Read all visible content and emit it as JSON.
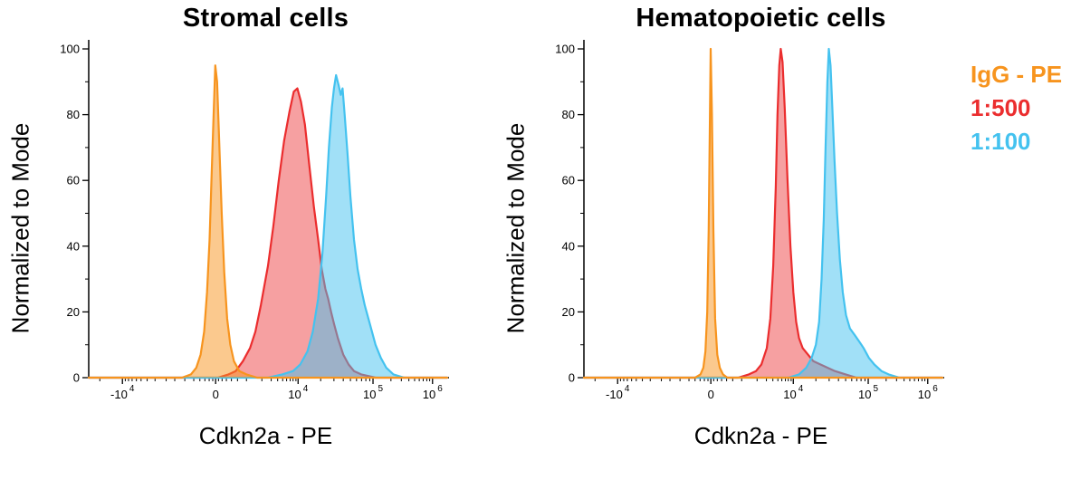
{
  "legend": {
    "items": [
      {
        "label": "IgG - PE",
        "color": "#F7941E"
      },
      {
        "label": "1:500",
        "color": "#EB2D2E"
      },
      {
        "label": "1:100",
        "color": "#44C2EF"
      }
    ]
  },
  "chart_data": [
    {
      "type": "area",
      "title": "Stromal cells",
      "xlabel": "Cdkn2a - PE",
      "ylabel": "Normalized to Mode",
      "x_scale": "biexponential",
      "ylim": [
        0,
        100
      ],
      "grid": false,
      "y_ticks": [
        0,
        20,
        40,
        60,
        80,
        100
      ],
      "y_minor_ticks": [
        10,
        30,
        50,
        70,
        90
      ],
      "x_ticks": [
        {
          "frac": 0.094,
          "base": "-10",
          "exp": "4"
        },
        {
          "frac": 0.354,
          "base": "0",
          "exp": ""
        },
        {
          "frac": 0.584,
          "base": "10",
          "exp": "4"
        },
        {
          "frac": 0.793,
          "base": "10",
          "exp": "5"
        },
        {
          "frac": 0.959,
          "base": "10",
          "exp": "6"
        }
      ],
      "x_minor_ticks": [
        0.031,
        0.102,
        0.111,
        0.121,
        0.133,
        0.146,
        0.163,
        0.185,
        0.216,
        0.24,
        0.268,
        0.293,
        0.31,
        0.324,
        0.336,
        0.346,
        0.362,
        0.372,
        0.384,
        0.398,
        0.415,
        0.44,
        0.483,
        0.509,
        0.527,
        0.541,
        0.552,
        0.562,
        0.57,
        0.578,
        0.647,
        0.684,
        0.71,
        0.73,
        0.747,
        0.761,
        0.773,
        0.784,
        0.843,
        0.872,
        0.893,
        0.909,
        0.922,
        0.933,
        0.943,
        0.951
      ],
      "series": [
        {
          "name": "1:500",
          "color": "#EB2D2E",
          "fill_opacity": 0.45,
          "peak_x_frac": 0.582,
          "peak_y": 88,
          "points": [
            [
              0,
              0
            ],
            [
              0.36,
              0
            ],
            [
              0.39,
              1
            ],
            [
              0.41,
              2
            ],
            [
              0.43,
              5
            ],
            [
              0.45,
              9
            ],
            [
              0.465,
              14
            ],
            [
              0.48,
              22
            ],
            [
              0.5,
              34
            ],
            [
              0.515,
              46
            ],
            [
              0.53,
              60
            ],
            [
              0.545,
              72
            ],
            [
              0.56,
              81
            ],
            [
              0.572,
              87
            ],
            [
              0.582,
              88
            ],
            [
              0.592,
              84
            ],
            [
              0.603,
              77
            ],
            [
              0.615,
              65
            ],
            [
              0.628,
              52
            ],
            [
              0.64,
              42
            ],
            [
              0.65,
              33
            ],
            [
              0.66,
              27
            ],
            [
              0.668,
              24
            ],
            [
              0.676,
              20
            ],
            [
              0.685,
              16
            ],
            [
              0.695,
              12
            ],
            [
              0.71,
              7
            ],
            [
              0.725,
              4
            ],
            [
              0.74,
              2
            ],
            [
              0.76,
              1
            ],
            [
              0.8,
              0
            ],
            [
              1,
              0
            ]
          ]
        },
        {
          "name": "1:100",
          "color": "#44C2EF",
          "fill_opacity": 0.5,
          "peak_x_frac": 0.69,
          "peak_y": 92,
          "points": [
            [
              0,
              0
            ],
            [
              0.5,
              0
            ],
            [
              0.54,
              1
            ],
            [
              0.57,
              2
            ],
            [
              0.59,
              4
            ],
            [
              0.61,
              8
            ],
            [
              0.625,
              14
            ],
            [
              0.64,
              24
            ],
            [
              0.652,
              38
            ],
            [
              0.662,
              55
            ],
            [
              0.67,
              70
            ],
            [
              0.678,
              82
            ],
            [
              0.684,
              88
            ],
            [
              0.69,
              92
            ],
            [
              0.697,
              89
            ],
            [
              0.703,
              86
            ],
            [
              0.708,
              88
            ],
            [
              0.714,
              80
            ],
            [
              0.722,
              68
            ],
            [
              0.73,
              55
            ],
            [
              0.74,
              42
            ],
            [
              0.75,
              33
            ],
            [
              0.76,
              27
            ],
            [
              0.77,
              22
            ],
            [
              0.785,
              16
            ],
            [
              0.8,
              10
            ],
            [
              0.815,
              6
            ],
            [
              0.83,
              3
            ],
            [
              0.85,
              1
            ],
            [
              0.88,
              0
            ],
            [
              1,
              0
            ]
          ]
        },
        {
          "name": "IgG - PE",
          "color": "#F7941E",
          "fill_opacity": 0.5,
          "peak_x_frac": 0.353,
          "peak_y": 95,
          "points": [
            [
              0,
              0
            ],
            [
              0.26,
              0
            ],
            [
              0.285,
              1
            ],
            [
              0.3,
              3
            ],
            [
              0.312,
              7
            ],
            [
              0.322,
              14
            ],
            [
              0.33,
              26
            ],
            [
              0.337,
              42
            ],
            [
              0.343,
              62
            ],
            [
              0.349,
              82
            ],
            [
              0.353,
              95
            ],
            [
              0.358,
              90
            ],
            [
              0.364,
              72
            ],
            [
              0.371,
              50
            ],
            [
              0.378,
              32
            ],
            [
              0.386,
              18
            ],
            [
              0.395,
              10
            ],
            [
              0.405,
              5
            ],
            [
              0.42,
              2
            ],
            [
              0.44,
              1
            ],
            [
              0.47,
              0
            ],
            [
              1,
              0
            ]
          ]
        }
      ]
    },
    {
      "type": "area",
      "title": "Hematopoietic cells",
      "xlabel": "Cdkn2a - PE",
      "ylabel": "Normalized to Mode",
      "x_scale": "biexponential",
      "ylim": [
        0,
        100
      ],
      "grid": false,
      "y_ticks": [
        0,
        20,
        40,
        60,
        80,
        100
      ],
      "y_minor_ticks": [
        10,
        30,
        50,
        70,
        90
      ],
      "x_ticks": [
        {
          "frac": 0.094,
          "base": "-10",
          "exp": "4"
        },
        {
          "frac": 0.354,
          "base": "0",
          "exp": ""
        },
        {
          "frac": 0.584,
          "base": "10",
          "exp": "4"
        },
        {
          "frac": 0.793,
          "base": "10",
          "exp": "5"
        },
        {
          "frac": 0.959,
          "base": "10",
          "exp": "6"
        }
      ],
      "x_minor_ticks": [
        0.031,
        0.102,
        0.111,
        0.121,
        0.133,
        0.146,
        0.163,
        0.185,
        0.216,
        0.24,
        0.268,
        0.293,
        0.31,
        0.324,
        0.336,
        0.346,
        0.362,
        0.372,
        0.384,
        0.398,
        0.415,
        0.44,
        0.483,
        0.509,
        0.527,
        0.541,
        0.552,
        0.562,
        0.57,
        0.578,
        0.647,
        0.684,
        0.71,
        0.73,
        0.747,
        0.761,
        0.773,
        0.784,
        0.843,
        0.872,
        0.893,
        0.909,
        0.922,
        0.933,
        0.943,
        0.951
      ],
      "series": [
        {
          "name": "1:500",
          "color": "#EB2D2E",
          "fill_opacity": 0.45,
          "peak_x_frac": 0.549,
          "peak_y": 100,
          "points": [
            [
              0,
              0
            ],
            [
              0.43,
              0
            ],
            [
              0.46,
              1
            ],
            [
              0.48,
              2
            ],
            [
              0.495,
              4
            ],
            [
              0.51,
              9
            ],
            [
              0.52,
              18
            ],
            [
              0.528,
              34
            ],
            [
              0.535,
              58
            ],
            [
              0.54,
              80
            ],
            [
              0.545,
              95
            ],
            [
              0.549,
              100
            ],
            [
              0.554,
              96
            ],
            [
              0.56,
              82
            ],
            [
              0.568,
              60
            ],
            [
              0.576,
              40
            ],
            [
              0.584,
              26
            ],
            [
              0.592,
              17
            ],
            [
              0.6,
              12
            ],
            [
              0.61,
              9
            ],
            [
              0.625,
              7
            ],
            [
              0.64,
              5
            ],
            [
              0.66,
              4
            ],
            [
              0.68,
              3
            ],
            [
              0.7,
              2
            ],
            [
              0.73,
              1
            ],
            [
              0.76,
              0
            ],
            [
              1,
              0
            ]
          ]
        },
        {
          "name": "1:100",
          "color": "#44C2EF",
          "fill_opacity": 0.5,
          "peak_x_frac": 0.683,
          "peak_y": 100,
          "points": [
            [
              0,
              0
            ],
            [
              0.57,
              0
            ],
            [
              0.6,
              1
            ],
            [
              0.62,
              3
            ],
            [
              0.635,
              6
            ],
            [
              0.647,
              10
            ],
            [
              0.656,
              17
            ],
            [
              0.663,
              30
            ],
            [
              0.669,
              48
            ],
            [
              0.674,
              70
            ],
            [
              0.679,
              90
            ],
            [
              0.683,
              100
            ],
            [
              0.688,
              95
            ],
            [
              0.693,
              82
            ],
            [
              0.699,
              66
            ],
            [
              0.706,
              50
            ],
            [
              0.714,
              36
            ],
            [
              0.722,
              26
            ],
            [
              0.731,
              19
            ],
            [
              0.742,
              15
            ],
            [
              0.755,
              13
            ],
            [
              0.768,
              11
            ],
            [
              0.78,
              9
            ],
            [
              0.795,
              6
            ],
            [
              0.81,
              4
            ],
            [
              0.83,
              2
            ],
            [
              0.85,
              1
            ],
            [
              0.88,
              0
            ],
            [
              1,
              0
            ]
          ]
        },
        {
          "name": "IgG - PE",
          "color": "#F7941E",
          "fill_opacity": 0.5,
          "peak_x_frac": 0.3535,
          "peak_y": 100,
          "points": [
            [
              0,
              0
            ],
            [
              0.31,
              0
            ],
            [
              0.325,
              1
            ],
            [
              0.333,
              3
            ],
            [
              0.339,
              8
            ],
            [
              0.344,
              20
            ],
            [
              0.348,
              45
            ],
            [
              0.351,
              75
            ],
            [
              0.3535,
              100
            ],
            [
              0.357,
              80
            ],
            [
              0.361,
              45
            ],
            [
              0.366,
              18
            ],
            [
              0.372,
              7
            ],
            [
              0.379,
              3
            ],
            [
              0.388,
              1
            ],
            [
              0.4,
              0
            ],
            [
              1,
              0
            ]
          ]
        }
      ]
    }
  ]
}
